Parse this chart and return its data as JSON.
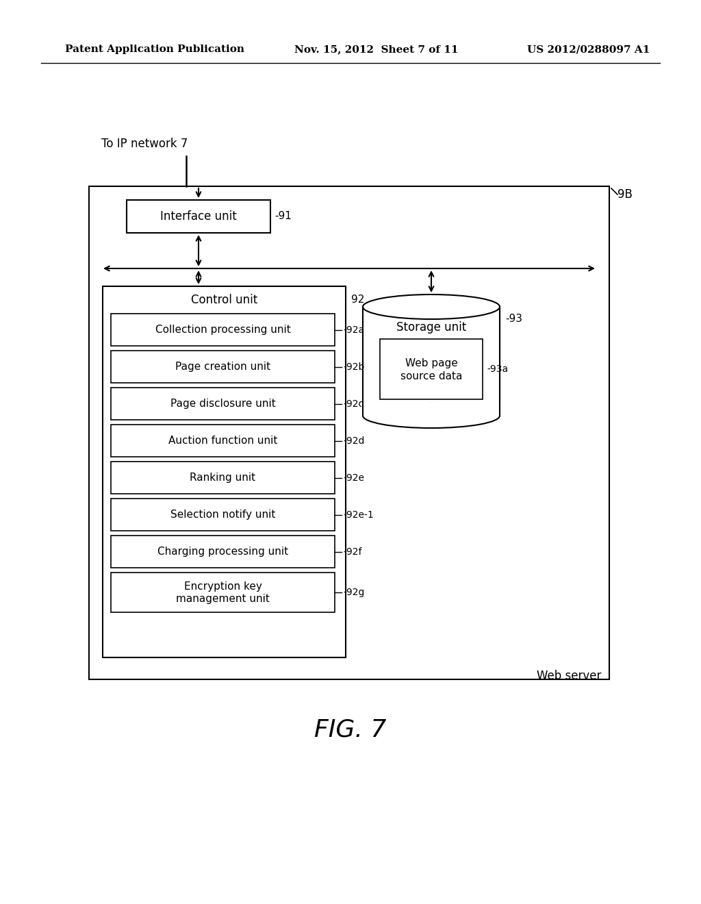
{
  "header_left": "Patent Application Publication",
  "header_center": "Nov. 15, 2012  Sheet 7 of 11",
  "header_right": "US 2012/0288097 A1",
  "fig_label": "FIG. 7",
  "ip_network_label": "To IP network 7",
  "web_server_label": "Web server",
  "label_9B": "9B",
  "interface_unit_label": "Interface unit",
  "interface_unit_ref": "-91",
  "control_unit_label": "Control unit",
  "control_unit_ref": "92",
  "storage_unit_label": "Storage unit",
  "storage_unit_ref": "-93",
  "web_page_label": "Web page\nsource data",
  "web_page_ref": "-93a",
  "sub_units": [
    {
      "label": "Collection processing unit",
      "ref": "-92a"
    },
    {
      "label": "Page creation unit",
      "ref": "-92b"
    },
    {
      "label": "Page disclosure unit",
      "ref": "-92c"
    },
    {
      "label": "Auction function unit",
      "ref": "-92d"
    },
    {
      "label": "Ranking unit",
      "ref": "-92e"
    },
    {
      "label": "Selection notify unit",
      "ref": "-92e-1"
    },
    {
      "label": "Charging processing unit",
      "ref": "-92f"
    },
    {
      "label": "Encryption key\nmanagement unit",
      "ref": "-92g"
    }
  ],
  "bg_color": "#ffffff",
  "box_color": "#000000",
  "text_color": "#000000"
}
